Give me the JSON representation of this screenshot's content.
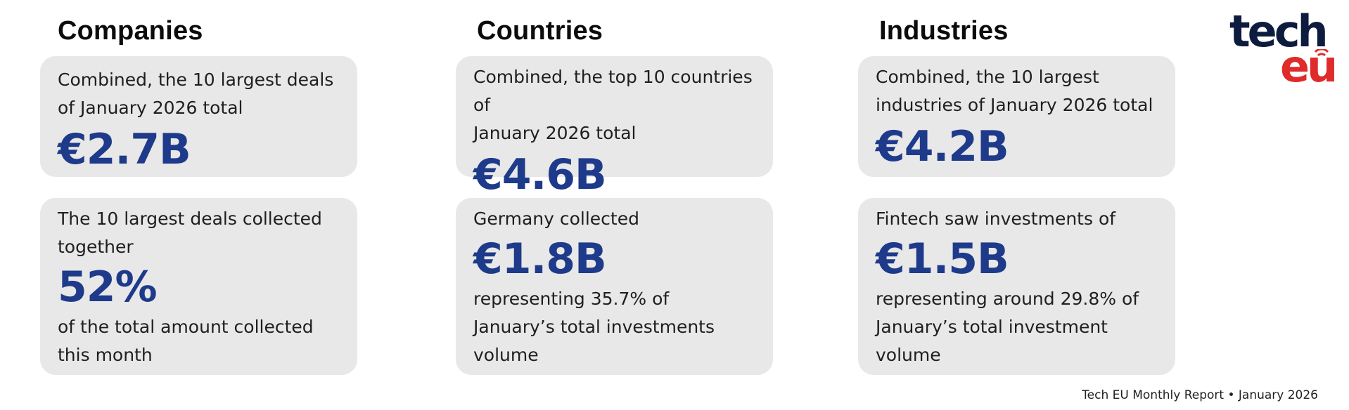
{
  "columns": [
    {
      "title": "Companies",
      "top_card": {
        "text": [
          "Combined, the 10 largest deals",
          "of January 2026 total"
        ],
        "value": "€2.7B"
      },
      "bottom_card": {
        "lead": [
          "The 10 largest deals collected",
          "together"
        ],
        "value": "52%",
        "trail": [
          "of the total amount collected",
          "this month"
        ]
      }
    },
    {
      "title": "Countries",
      "top_card": {
        "text": [
          "Combined, the top 10 countries of",
          "January 2026 total"
        ],
        "value": "€4.6B"
      },
      "bottom_card": {
        "lead": [
          "Germany collected"
        ],
        "value": "€1.8B",
        "trail": [
          "representing 35.7% of",
          "January’s total investments",
          "volume"
        ]
      }
    },
    {
      "title": "Industries",
      "top_card": {
        "text": [
          "Combined, the 10 largest",
          "industries of January 2026 total"
        ],
        "value": "€4.2B"
      },
      "bottom_card": {
        "lead": [
          "Fintech saw investments of"
        ],
        "value": "€1.5B",
        "trail": [
          "representing around 29.8% of",
          "January’s total investment",
          "volume"
        ]
      }
    }
  ],
  "logo": {
    "line1": "tech",
    "line2": "eu",
    "primary_color": "#0d1b3e",
    "accent_color": "#e02b2b"
  },
  "footer": "Tech EU Monthly Report • January 2026",
  "colors": {
    "card_bg": "#e8e8e8",
    "value": "#1e3a8a"
  }
}
